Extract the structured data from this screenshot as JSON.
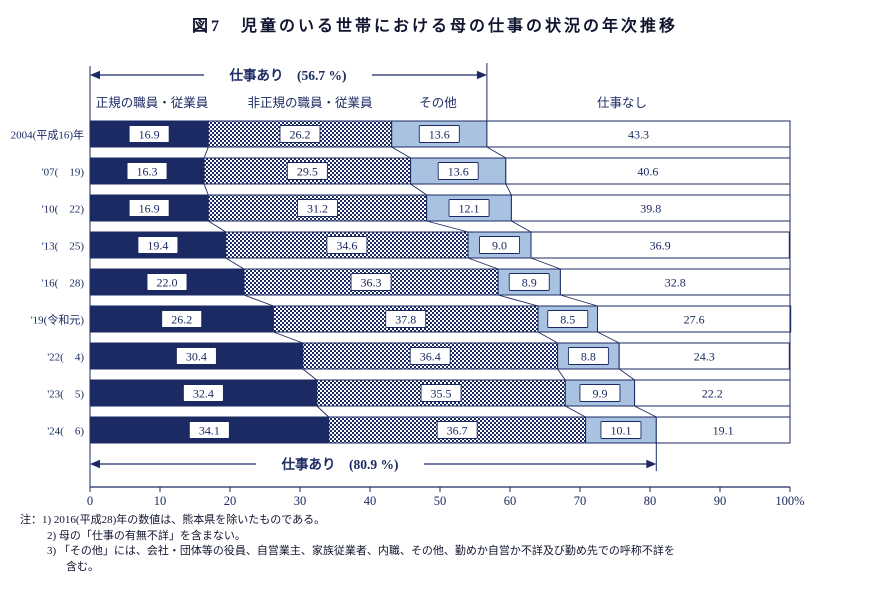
{
  "title": "図7　児童のいる世帯における母の仕事の状況の年次推移",
  "chart_data": {
    "type": "bar",
    "stacked": true,
    "orientation": "horizontal",
    "unit": "%",
    "xlim": [
      0,
      100
    ],
    "categories": [
      "2004(平成16)年",
      "'07(　19)",
      "'10(　22)",
      "'13(　25)",
      "'16(　28)",
      "'19(令和元)",
      "'22(　4)",
      "'23(　5)",
      "'24(　6)"
    ],
    "series": [
      {
        "name": "正規の職員・従業員",
        "style": "solid-navy",
        "values": [
          16.9,
          16.3,
          16.9,
          19.4,
          22.0,
          26.2,
          30.4,
          32.4,
          34.1
        ]
      },
      {
        "name": "非正規の職員・従業員",
        "style": "checker",
        "values": [
          26.2,
          29.5,
          31.2,
          34.6,
          36.3,
          37.8,
          36.4,
          35.5,
          36.7
        ]
      },
      {
        "name": "その他",
        "style": "light-blue",
        "values": [
          13.6,
          13.6,
          12.1,
          9.0,
          8.9,
          8.5,
          8.8,
          9.9,
          10.1
        ]
      },
      {
        "name": "仕事なし",
        "style": "white",
        "values": [
          43.3,
          40.6,
          39.8,
          36.9,
          32.8,
          27.6,
          24.3,
          22.2,
          19.1
        ]
      }
    ],
    "x_ticks": [
      "0",
      "10",
      "20",
      "30",
      "40",
      "50",
      "60",
      "70",
      "80",
      "90",
      "100%"
    ],
    "annotations": [
      {
        "text": "仕事あり　(56.7 %)",
        "from": 0,
        "to": 56.7,
        "position": "top"
      },
      {
        "text": "仕事あり　(80.9 %)",
        "from": 0,
        "to": 80.9,
        "position": "bottom"
      }
    ],
    "colors": {
      "navy": "#1b2a63",
      "light_blue": "#a9c2e1",
      "white": "#ffffff"
    },
    "legend_position": "column-headers",
    "grid": false
  },
  "notes": {
    "lines": [
      "注：1) 2016(平成28)年の数値は、熊本県を除いたものである。",
      "2) 母の「仕事の有無不詳」を含まない。",
      "3) 「その他」には、会社・団体等の役員、自営業主、家族従業者、内職、その他、勤めか自営か不詳及び勤め先での呼称不詳を",
      "含む。"
    ]
  }
}
